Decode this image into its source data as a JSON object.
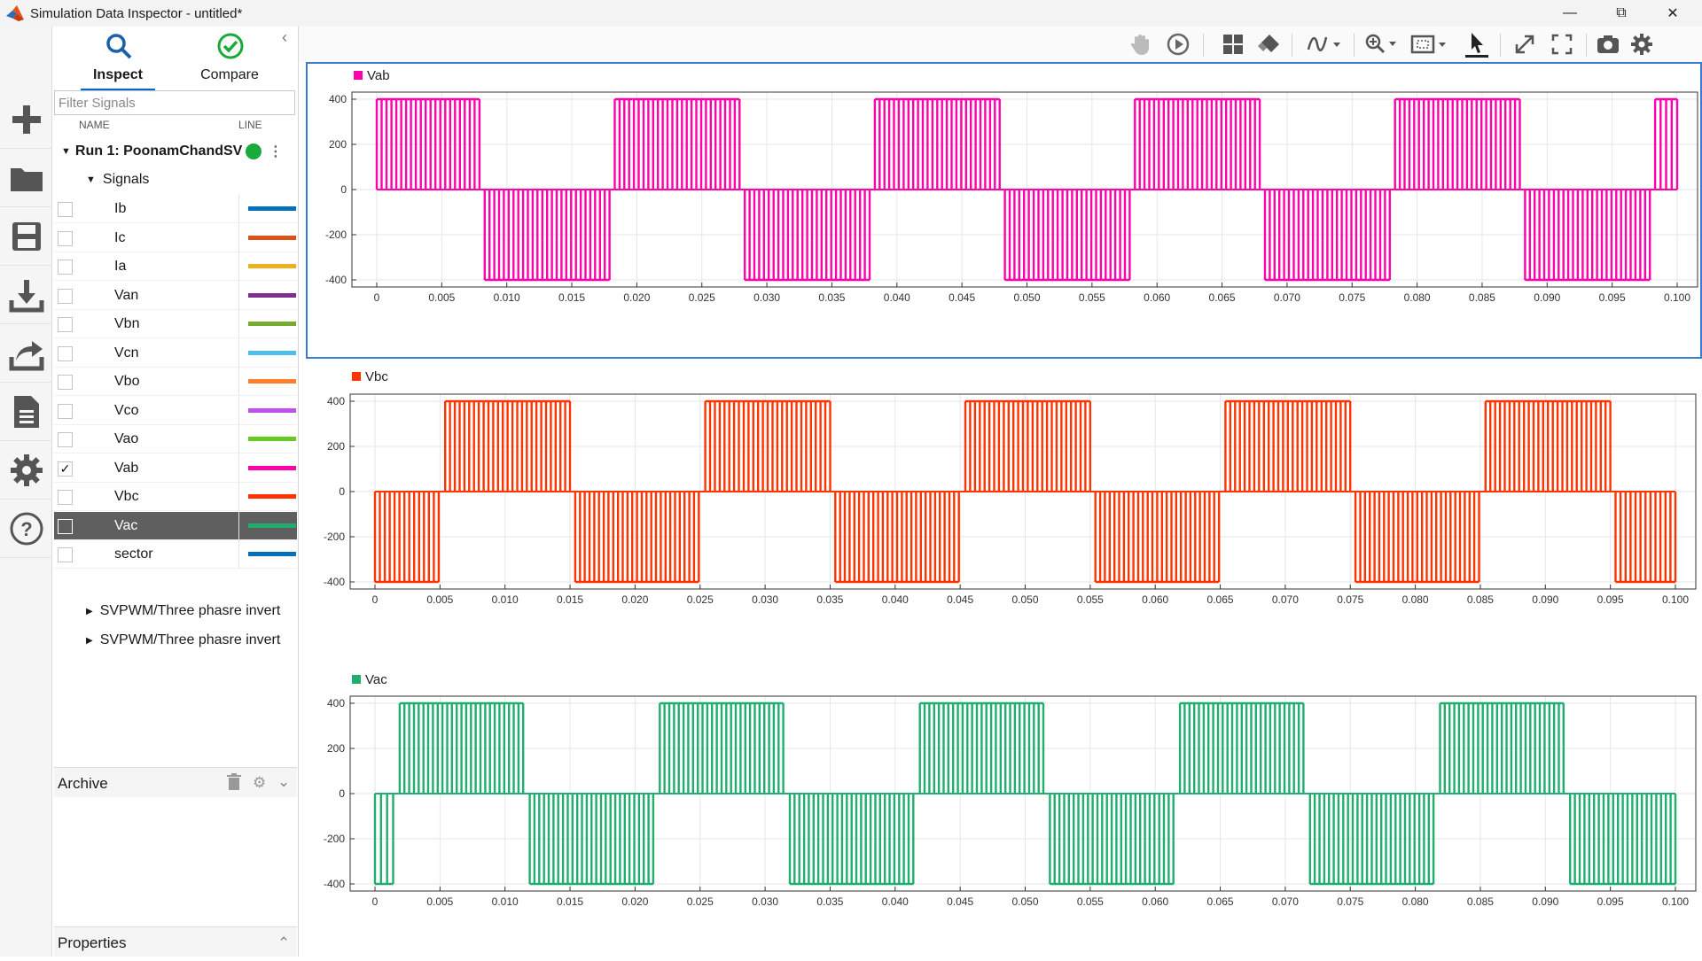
{
  "window": {
    "title": "Simulation Data Inspector - untitled*"
  },
  "tabs": [
    {
      "label": "Inspect"
    },
    {
      "label": "Compare"
    }
  ],
  "filter": {
    "placeholder": "Filter Signals"
  },
  "columns": {
    "name": "NAME",
    "line": "LINE"
  },
  "run": {
    "label": "Run 1: PoonamChandSVI",
    "status_color": "#1aaa3a"
  },
  "signals_group": {
    "label": "Signals"
  },
  "signals": [
    {
      "name": "Ib",
      "color": "#0072bd",
      "checked": false
    },
    {
      "name": "Ic",
      "color": "#d95319",
      "checked": false
    },
    {
      "name": "Ia",
      "color": "#edb120",
      "checked": false
    },
    {
      "name": "Van",
      "color": "#7e2f8e",
      "checked": false
    },
    {
      "name": "Vbn",
      "color": "#77ac30",
      "checked": false
    },
    {
      "name": "Vcn",
      "color": "#4dbeee",
      "checked": false
    },
    {
      "name": "Vbo",
      "color": "#ff7f2a",
      "checked": false
    },
    {
      "name": "Vco",
      "color": "#c050f0",
      "checked": false
    },
    {
      "name": "Vao",
      "color": "#66cc22",
      "checked": false
    },
    {
      "name": "Vab",
      "color": "#ff00aa",
      "checked": true
    },
    {
      "name": "Vbc",
      "color": "#ff3300",
      "checked": false
    },
    {
      "name": "Vac",
      "color": "#1fae6e",
      "checked": false,
      "selected": true
    },
    {
      "name": "sector",
      "color": "#0072bd",
      "checked": false
    }
  ],
  "subgroups": [
    {
      "label": "SVPWM/Three phasre invert"
    },
    {
      "label": "SVPWM/Three phasre invert"
    }
  ],
  "archive": {
    "label": "Archive"
  },
  "properties": {
    "label": "Properties"
  },
  "toolbar_icons": [
    "pan-icon",
    "replay-icon",
    "layout-icon",
    "clear-icon",
    "signal-style-icon",
    "zoom-icon",
    "fit-to-view-icon",
    "cursor-icon",
    "expand-icon",
    "fullscreen-icon",
    "snapshot-icon",
    "settings-icon"
  ],
  "chart_data": [
    {
      "type": "line",
      "title": "",
      "legend": "Vab",
      "color": "#ff00aa",
      "xlabel": "",
      "ylabel": "",
      "xlim": [
        0,
        0.1
      ],
      "ylim": [
        -400,
        400
      ],
      "xticks": [
        "0",
        "0.005",
        "0.010",
        "0.015",
        "0.020",
        "0.025",
        "0.030",
        "0.035",
        "0.040",
        "0.045",
        "0.050",
        "0.055",
        "0.060",
        "0.065",
        "0.070",
        "0.075",
        "0.080",
        "0.085",
        "0.090",
        "0.095",
        "0.100"
      ],
      "yticks": [
        "400",
        "200",
        "0",
        "-200",
        "-400"
      ],
      "grid": true,
      "waveform": "pwm",
      "amplitude": 400,
      "fundamental_period": 0.02,
      "positive_intervals": [
        [
          0.0,
          0.0079
        ],
        [
          0.0183,
          0.0279
        ],
        [
          0.0383,
          0.0479
        ],
        [
          0.0583,
          0.0679
        ],
        [
          0.0783,
          0.0879
        ],
        [
          0.0983,
          0.1
        ]
      ],
      "negative_intervals": [
        [
          0.0083,
          0.0179
        ],
        [
          0.0283,
          0.0379
        ],
        [
          0.0483,
          0.0579
        ],
        [
          0.0683,
          0.0779
        ],
        [
          0.0883,
          0.0979
        ]
      ]
    },
    {
      "type": "line",
      "title": "",
      "legend": "Vbc",
      "color": "#ff3300",
      "xlabel": "",
      "ylabel": "",
      "xlim": [
        0,
        0.1
      ],
      "ylim": [
        -400,
        400
      ],
      "xticks": [
        "0",
        "0.005",
        "0.010",
        "0.015",
        "0.020",
        "0.025",
        "0.030",
        "0.035",
        "0.040",
        "0.045",
        "0.050",
        "0.055",
        "0.060",
        "0.065",
        "0.070",
        "0.075",
        "0.080",
        "0.085",
        "0.090",
        "0.095",
        "0.100"
      ],
      "yticks": [
        "400",
        "200",
        "0",
        "-200",
        "-400"
      ],
      "grid": true,
      "waveform": "pwm",
      "amplitude": 400,
      "fundamental_period": 0.02,
      "positive_intervals": [
        [
          0.0054,
          0.015
        ],
        [
          0.0254,
          0.035
        ],
        [
          0.0454,
          0.055
        ],
        [
          0.0654,
          0.075
        ],
        [
          0.0854,
          0.095
        ]
      ],
      "negative_intervals": [
        [
          0.0,
          0.0049
        ],
        [
          0.0154,
          0.0249
        ],
        [
          0.0354,
          0.0449
        ],
        [
          0.0554,
          0.0649
        ],
        [
          0.0754,
          0.0849
        ],
        [
          0.0954,
          0.1
        ]
      ]
    },
    {
      "type": "line",
      "title": "",
      "legend": "Vac",
      "color": "#1fae6e",
      "xlabel": "",
      "ylabel": "",
      "xlim": [
        0,
        0.1
      ],
      "ylim": [
        -400,
        400
      ],
      "xticks": [
        "0",
        "0.005",
        "0.010",
        "0.015",
        "0.020",
        "0.025",
        "0.030",
        "0.035",
        "0.040",
        "0.045",
        "0.050",
        "0.055",
        "0.060",
        "0.065",
        "0.070",
        "0.075",
        "0.080",
        "0.085",
        "0.090",
        "0.095",
        "0.100"
      ],
      "yticks": [
        "400",
        "200",
        "0",
        "-200",
        "-400"
      ],
      "grid": true,
      "waveform": "pwm",
      "amplitude": 400,
      "fundamental_period": 0.02,
      "positive_intervals": [
        [
          0.0019,
          0.0114
        ],
        [
          0.0219,
          0.0314
        ],
        [
          0.0419,
          0.0514
        ],
        [
          0.0619,
          0.0714
        ],
        [
          0.0819,
          0.0914
        ]
      ],
      "negative_intervals": [
        [
          0.0,
          0.0014
        ],
        [
          0.0119,
          0.0214
        ],
        [
          0.0319,
          0.0414
        ],
        [
          0.0519,
          0.0614
        ],
        [
          0.0719,
          0.0814
        ],
        [
          0.0919,
          0.1
        ]
      ]
    }
  ]
}
